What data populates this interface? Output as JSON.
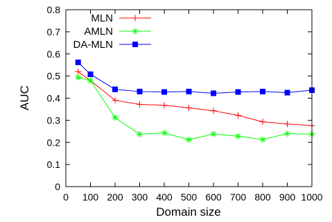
{
  "chart_data": {
    "type": "line",
    "xlabel": "Domain size",
    "ylabel": "AUC",
    "xlim": [
      0,
      1000
    ],
    "ylim": [
      0,
      0.8
    ],
    "xticks": [
      "0",
      "100",
      "200",
      "300",
      "400",
      "500",
      "600",
      "700",
      "800",
      "900",
      "1000"
    ],
    "yticks": [
      "0",
      "0.1",
      "0.2",
      "0.3",
      "0.4",
      "0.5",
      "0.6",
      "0.7",
      "0.8"
    ],
    "grid": false,
    "legend_position": "top-left",
    "x": [
      50,
      100,
      200,
      300,
      400,
      500,
      600,
      700,
      800,
      900,
      1000
    ],
    "series": [
      {
        "name": "MLN",
        "color": "#ff0000",
        "marker": "plus",
        "values": [
          0.52,
          0.48,
          0.39,
          0.372,
          0.368,
          0.356,
          0.343,
          0.322,
          0.293,
          0.283,
          0.276
        ]
      },
      {
        "name": "AMLN",
        "color": "#00ff00",
        "marker": "star",
        "values": [
          0.494,
          0.48,
          0.312,
          0.237,
          0.243,
          0.212,
          0.238,
          0.228,
          0.213,
          0.24,
          0.237
        ]
      },
      {
        "name": "DA-MLN",
        "color": "#0000ff",
        "marker": "filled-square",
        "values": [
          0.562,
          0.508,
          0.44,
          0.43,
          0.428,
          0.43,
          0.422,
          0.428,
          0.43,
          0.425,
          0.436
        ]
      }
    ]
  }
}
